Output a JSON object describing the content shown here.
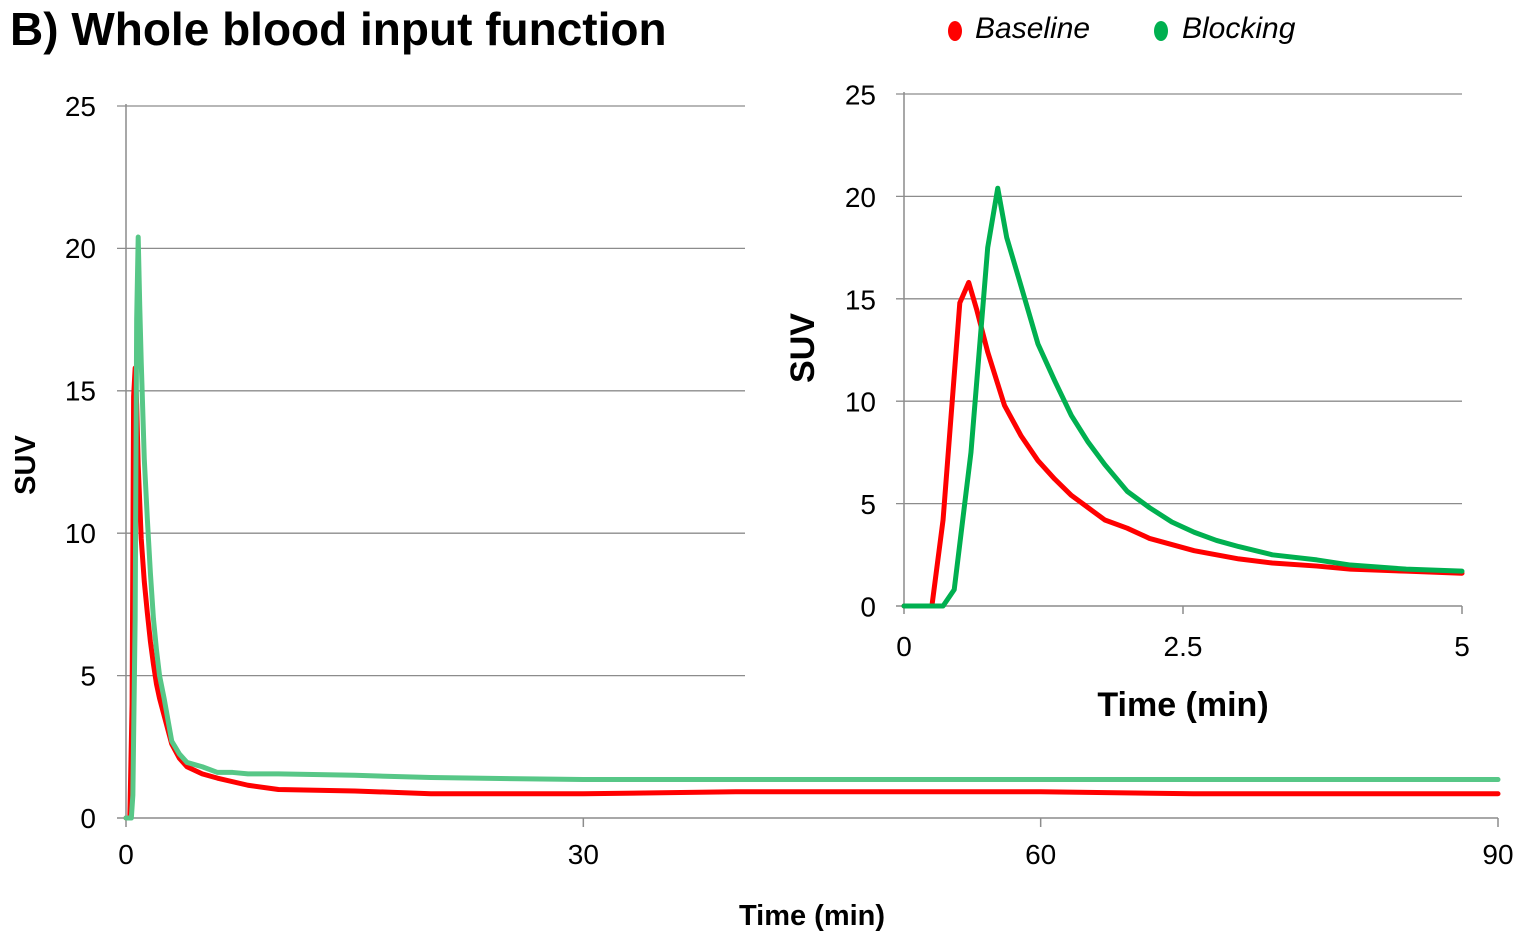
{
  "figure_title": "B) Whole blood input function",
  "legend": [
    {
      "label": "Baseline",
      "color": "#ff0000"
    },
    {
      "label": "Blocking",
      "color": "#00b050"
    }
  ],
  "chart_data": [
    {
      "type": "line",
      "title": "",
      "xlabel": "Time (min)",
      "ylabel": "SUV",
      "xlim": [
        0,
        90
      ],
      "ylim": [
        0,
        25
      ],
      "x_ticks": [
        0,
        30,
        60,
        90
      ],
      "y_ticks": [
        0,
        5,
        10,
        15,
        20,
        25
      ],
      "grid": true,
      "series": [
        {
          "name": "Baseline",
          "color": "#ff0000",
          "points": [
            [
              0,
              0
            ],
            [
              0.25,
              0
            ],
            [
              0.4,
              4
            ],
            [
              0.5,
              14.8
            ],
            [
              0.6,
              15.8
            ],
            [
              0.7,
              14.5
            ],
            [
              0.8,
              12.4
            ],
            [
              1.0,
              9.8
            ],
            [
              1.2,
              8.3
            ],
            [
              1.4,
              7.2
            ],
            [
              1.6,
              6.2
            ],
            [
              1.8,
              5.4
            ],
            [
              2.0,
              4.7
            ],
            [
              2.2,
              4.2
            ],
            [
              2.5,
              3.6
            ],
            [
              3.0,
              2.6
            ],
            [
              3.5,
              2.1
            ],
            [
              4.0,
              1.8
            ],
            [
              5.0,
              1.55
            ],
            [
              6.0,
              1.4
            ],
            [
              8.0,
              1.15
            ],
            [
              10.0,
              1.0
            ],
            [
              15.0,
              0.95
            ],
            [
              20.0,
              0.85
            ],
            [
              30.0,
              0.85
            ],
            [
              40.0,
              0.92
            ],
            [
              50.0,
              0.92
            ],
            [
              60.0,
              0.92
            ],
            [
              70.0,
              0.85
            ],
            [
              80.0,
              0.85
            ],
            [
              90.0,
              0.85
            ]
          ]
        },
        {
          "name": "Blocking",
          "color": "#57c787",
          "points": [
            [
              0,
              0
            ],
            [
              0.35,
              0
            ],
            [
              0.45,
              0.8
            ],
            [
              0.6,
              7
            ],
            [
              0.7,
              17.5
            ],
            [
              0.8,
              20.4
            ],
            [
              0.9,
              18
            ],
            [
              1.0,
              16
            ],
            [
              1.2,
              12.6
            ],
            [
              1.4,
              10.5
            ],
            [
              1.6,
              8.6
            ],
            [
              1.8,
              7.0
            ],
            [
              2.0,
              5.9
            ],
            [
              2.2,
              5.0
            ],
            [
              2.5,
              4.2
            ],
            [
              3.0,
              2.7
            ],
            [
              3.5,
              2.25
            ],
            [
              4.0,
              1.95
            ],
            [
              5.0,
              1.8
            ],
            [
              6.0,
              1.6
            ],
            [
              7.0,
              1.6
            ],
            [
              8.0,
              1.55
            ],
            [
              10.0,
              1.55
            ],
            [
              15.0,
              1.5
            ],
            [
              20.0,
              1.42
            ],
            [
              30.0,
              1.35
            ],
            [
              40.0,
              1.35
            ],
            [
              50.0,
              1.35
            ],
            [
              60.0,
              1.35
            ],
            [
              70.0,
              1.35
            ],
            [
              80.0,
              1.35
            ],
            [
              90.0,
              1.35
            ]
          ]
        }
      ]
    },
    {
      "type": "line",
      "title": "",
      "xlabel": "Time (min)",
      "ylabel": "SUV",
      "xlim": [
        0,
        5
      ],
      "ylim": [
        0,
        25
      ],
      "x_ticks": [
        0,
        2.5,
        5
      ],
      "y_ticks": [
        0,
        5,
        10,
        15,
        20,
        25
      ],
      "grid": true,
      "series": [
        {
          "name": "Baseline",
          "color": "#ff0000",
          "points": [
            [
              0,
              0
            ],
            [
              0.25,
              0
            ],
            [
              0.35,
              4.2
            ],
            [
              0.5,
              14.8
            ],
            [
              0.58,
              15.8
            ],
            [
              0.65,
              14.5
            ],
            [
              0.75,
              12.4
            ],
            [
              0.9,
              9.8
            ],
            [
              1.05,
              8.3
            ],
            [
              1.2,
              7.1
            ],
            [
              1.35,
              6.2
            ],
            [
              1.5,
              5.4
            ],
            [
              1.65,
              4.8
            ],
            [
              1.8,
              4.2
            ],
            [
              2.0,
              3.8
            ],
            [
              2.2,
              3.3
            ],
            [
              2.4,
              3.0
            ],
            [
              2.6,
              2.7
            ],
            [
              2.8,
              2.5
            ],
            [
              3.0,
              2.3
            ],
            [
              3.3,
              2.1
            ],
            [
              3.7,
              1.95
            ],
            [
              4.0,
              1.8
            ],
            [
              4.5,
              1.7
            ],
            [
              5.0,
              1.6
            ]
          ]
        },
        {
          "name": "Blocking",
          "color": "#00b050",
          "points": [
            [
              0,
              0
            ],
            [
              0.35,
              0
            ],
            [
              0.45,
              0.8
            ],
            [
              0.6,
              7.5
            ],
            [
              0.75,
              17.5
            ],
            [
              0.84,
              20.4
            ],
            [
              0.92,
              18.0
            ],
            [
              1.05,
              15.6
            ],
            [
              1.2,
              12.8
            ],
            [
              1.35,
              11.0
            ],
            [
              1.5,
              9.3
            ],
            [
              1.65,
              8.0
            ],
            [
              1.8,
              6.9
            ],
            [
              2.0,
              5.6
            ],
            [
              2.2,
              4.8
            ],
            [
              2.4,
              4.1
            ],
            [
              2.6,
              3.6
            ],
            [
              2.8,
              3.2
            ],
            [
              3.0,
              2.9
            ],
            [
              3.3,
              2.5
            ],
            [
              3.7,
              2.25
            ],
            [
              4.0,
              2.0
            ],
            [
              4.5,
              1.8
            ],
            [
              5.0,
              1.7
            ]
          ]
        }
      ]
    }
  ]
}
